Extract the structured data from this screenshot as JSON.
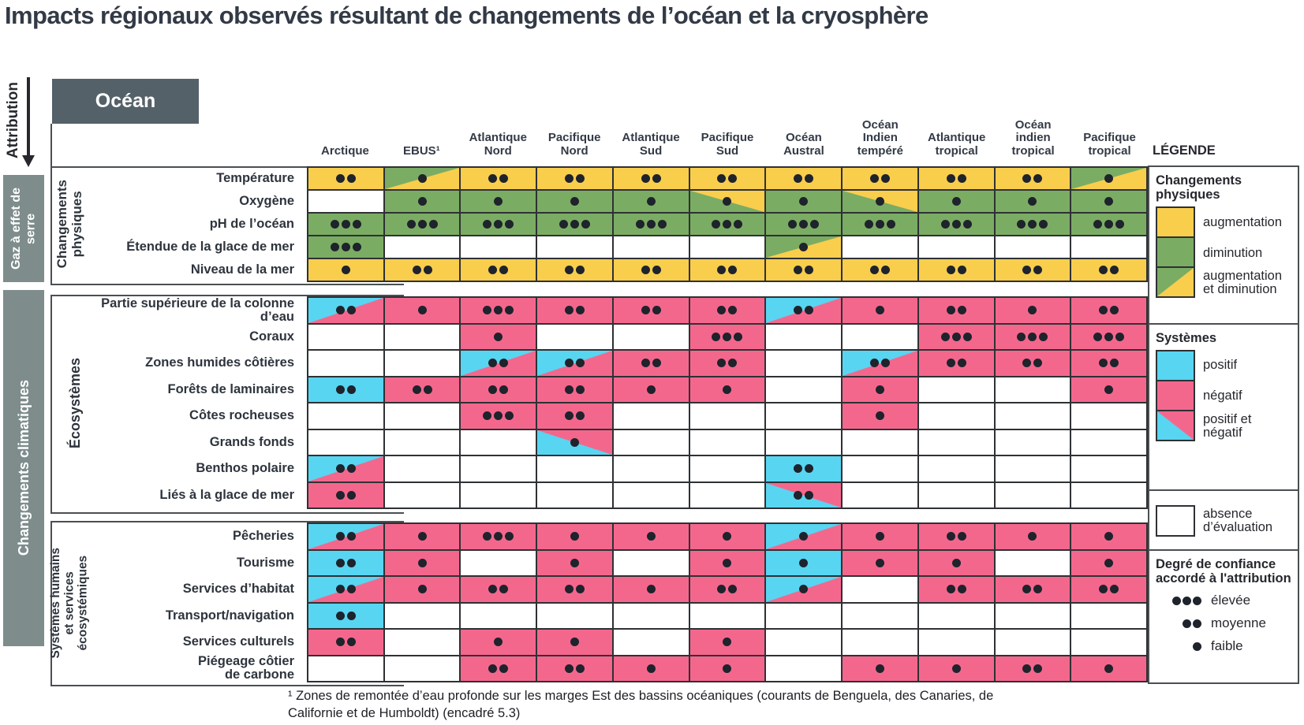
{
  "title": "Impacts régionaux observés résultant de changements de l’océan et la cryosphère",
  "attribution_label": "Attribution",
  "ocean_label": "Océan",
  "left_rail": {
    "side_bars": [
      {
        "label": "Gaz à effet de\nserre"
      },
      {
        "label": "Changements climatiques"
      }
    ]
  },
  "colors": {
    "yellow": "#F9CE4D",
    "green": "#7BAC63",
    "pink": "#F4678D",
    "cyan": "#58D5F1",
    "white": "#FFFFFF",
    "dot": "#1E232C",
    "grid_border": "#2E3134",
    "side_bar": "#7E8D8C",
    "header_box": "#556169",
    "text": "#333A46"
  },
  "chart_data": {
    "type": "heatmap",
    "title": "Impacts régionaux observés résultant de changements de l’océan et la cryosphère",
    "cell_codes": {
      "y": "augmentation (jaune)",
      "g": "diminution (vert)",
      "gy": "augmentation et diminution (vert/jaune, séparation diagonale)",
      "yg": "augmentation et diminution (jaune/vert, séparation diagonale)",
      "c": "positif (cyan)",
      "p": "négatif (rose)",
      "cp": "positif et négatif (cyan/rose, séparation diagonale)",
      "pc": "positif et négatif (rose/cyan, séparation diagonale)",
      "w": "absence d’évaluation (blanc)",
      "digit": "degré de confiance accordé à l'attribution : 1 = faible, 2 = moyenne, 3 = élevée"
    },
    "columns": [
      [
        "Arctique"
      ],
      [
        "EBUS¹"
      ],
      [
        "Atlantique",
        "Nord"
      ],
      [
        "Pacifique",
        "Nord"
      ],
      [
        "Atlantique",
        "Sud"
      ],
      [
        "Pacifique",
        "Sud"
      ],
      [
        "Océan",
        "Austral"
      ],
      [
        "Océan",
        "Indien",
        "tempéré"
      ],
      [
        "Atlantique",
        "tropical"
      ],
      [
        "Océan",
        "indien",
        "tropical"
      ],
      [
        "Pacifique",
        "tropical"
      ]
    ],
    "sections": [
      {
        "id": "changements-physiques",
        "group_label": "Changements\nphysiques",
        "rows": [
          {
            "label": "Température",
            "cells": [
              "y2",
              "gy1",
              "y2",
              "y2",
              "y2",
              "y2",
              "y2",
              "y2",
              "y2",
              "y2",
              "gy1"
            ]
          },
          {
            "label": "Oxygène",
            "cells": [
              "w",
              "g1",
              "g1",
              "g1",
              "g1",
              "yg1",
              "g1",
              "yg1",
              "g1",
              "g1",
              "g1"
            ]
          },
          {
            "label": "pH de l’océan",
            "cells": [
              "g3",
              "g3",
              "g3",
              "g3",
              "g3",
              "g3",
              "g3",
              "g3",
              "g3",
              "g3",
              "g3"
            ]
          },
          {
            "label": "Étendue de la glace de mer",
            "cells": [
              "g3",
              "w",
              "w",
              "w",
              "w",
              "w",
              "gy1",
              "w",
              "w",
              "w",
              "w"
            ]
          },
          {
            "label": "Niveau de la mer",
            "cells": [
              "y1",
              "y2",
              "y2",
              "y2",
              "y2",
              "y2",
              "y2",
              "y2",
              "y2",
              "y2",
              "y2"
            ]
          }
        ]
      },
      {
        "id": "ecosystemes",
        "group_label": "Écosystèmes",
        "rows": [
          {
            "label": "Partie supérieure de la colonne d’eau",
            "cells": [
              "cp2",
              "p1",
              "p3",
              "p2",
              "p2",
              "p2",
              "cp2",
              "p1",
              "p2",
              "p1",
              "p2"
            ]
          },
          {
            "label": "Coraux",
            "cells": [
              "w",
              "w",
              "p1",
              "w",
              "w",
              "p3",
              "w",
              "w",
              "p3",
              "p3",
              "p3"
            ]
          },
          {
            "label": "Zones humides côtières",
            "cells": [
              "w",
              "w",
              "cp2",
              "cp2",
              "p2",
              "p2",
              "w",
              "cp2",
              "p2",
              "p2",
              "p2"
            ]
          },
          {
            "label": "Forêts de laminaires",
            "cells": [
              "c2",
              "p2",
              "p2",
              "p2",
              "p1",
              "p1",
              "w",
              "p1",
              "w",
              "w",
              "p1"
            ]
          },
          {
            "label": "Côtes rocheuses",
            "cells": [
              "w",
              "w",
              "p3",
              "p2",
              "w",
              "w",
              "w",
              "p1",
              "w",
              "w",
              "w"
            ]
          },
          {
            "label": "Grands fonds",
            "cells": [
              "w",
              "w",
              "w",
              "pc1",
              "w",
              "w",
              "w",
              "w",
              "w",
              "w",
              "w"
            ]
          },
          {
            "label": "Benthos polaire",
            "cells": [
              "cp2",
              "w",
              "w",
              "w",
              "w",
              "w",
              "c2",
              "w",
              "w",
              "w",
              "w"
            ]
          },
          {
            "label": "Liés à la glace de mer",
            "cells": [
              "p2",
              "w",
              "w",
              "w",
              "w",
              "w",
              "pc2",
              "w",
              "w",
              "w",
              "w"
            ]
          }
        ]
      },
      {
        "id": "systemes-humains",
        "group_label": "Systèmes humains\net services\nécosystémiques",
        "rows": [
          {
            "label": "Pêcheries",
            "cells": [
              "cp2",
              "p1",
              "p3",
              "p1",
              "p1",
              "p1",
              "cp1",
              "p1",
              "p2",
              "p1",
              "p1"
            ]
          },
          {
            "label": "Tourisme",
            "cells": [
              "c2",
              "p1",
              "w",
              "p1",
              "w",
              "p1",
              "c1",
              "p1",
              "p1",
              "w",
              "p1"
            ]
          },
          {
            "label": "Services d’habitat",
            "cells": [
              "cp2",
              "p1",
              "p2",
              "p2",
              "p1",
              "p2",
              "cp1",
              "w",
              "p2",
              "p2",
              "p2"
            ]
          },
          {
            "label": "Transport/navigation",
            "cells": [
              "c2",
              "w",
              "w",
              "w",
              "w",
              "w",
              "w",
              "w",
              "w",
              "w",
              "w"
            ]
          },
          {
            "label": "Services culturels",
            "cells": [
              "p2",
              "w",
              "p1",
              "p1",
              "w",
              "p1",
              "w",
              "w",
              "w",
              "w",
              "w"
            ]
          },
          {
            "label": "Piégeage côtier\nde carbone",
            "cells": [
              "w",
              "w",
              "p2",
              "p2",
              "p1",
              "p1",
              "w",
              "p1",
              "p1",
              "p2",
              "p1"
            ]
          }
        ]
      }
    ]
  },
  "legend": {
    "title": "LÉGENDE",
    "physical": {
      "title": "Changements\nphysiques",
      "items": [
        {
          "swatch": "y",
          "label": "augmentation"
        },
        {
          "swatch": "g",
          "label": "diminution"
        },
        {
          "swatch": "gy",
          "label": "augmentation\net diminution"
        }
      ]
    },
    "systems": {
      "title": "Systèmes",
      "items": [
        {
          "swatch": "c",
          "label": "positif"
        },
        {
          "swatch": "p",
          "label": "négatif"
        },
        {
          "swatch": "pc",
          "label": "positif et\nnégatif"
        }
      ]
    },
    "absence": {
      "swatch": "w",
      "label": "absence\nd’évaluation"
    },
    "confidence": {
      "title": "Degré de confiance\naccordé à l'attribution",
      "items": [
        {
          "dots": 3,
          "label": "élevée"
        },
        {
          "dots": 2,
          "label": "moyenne"
        },
        {
          "dots": 1,
          "label": "faible"
        }
      ]
    }
  },
  "footnote": "¹ Zones de remontée d’eau profonde sur les marges Est des bassins océaniques (courants de Benguela, des Canaries, de\nCalifornie et de Humboldt) (encadré 5.3)"
}
